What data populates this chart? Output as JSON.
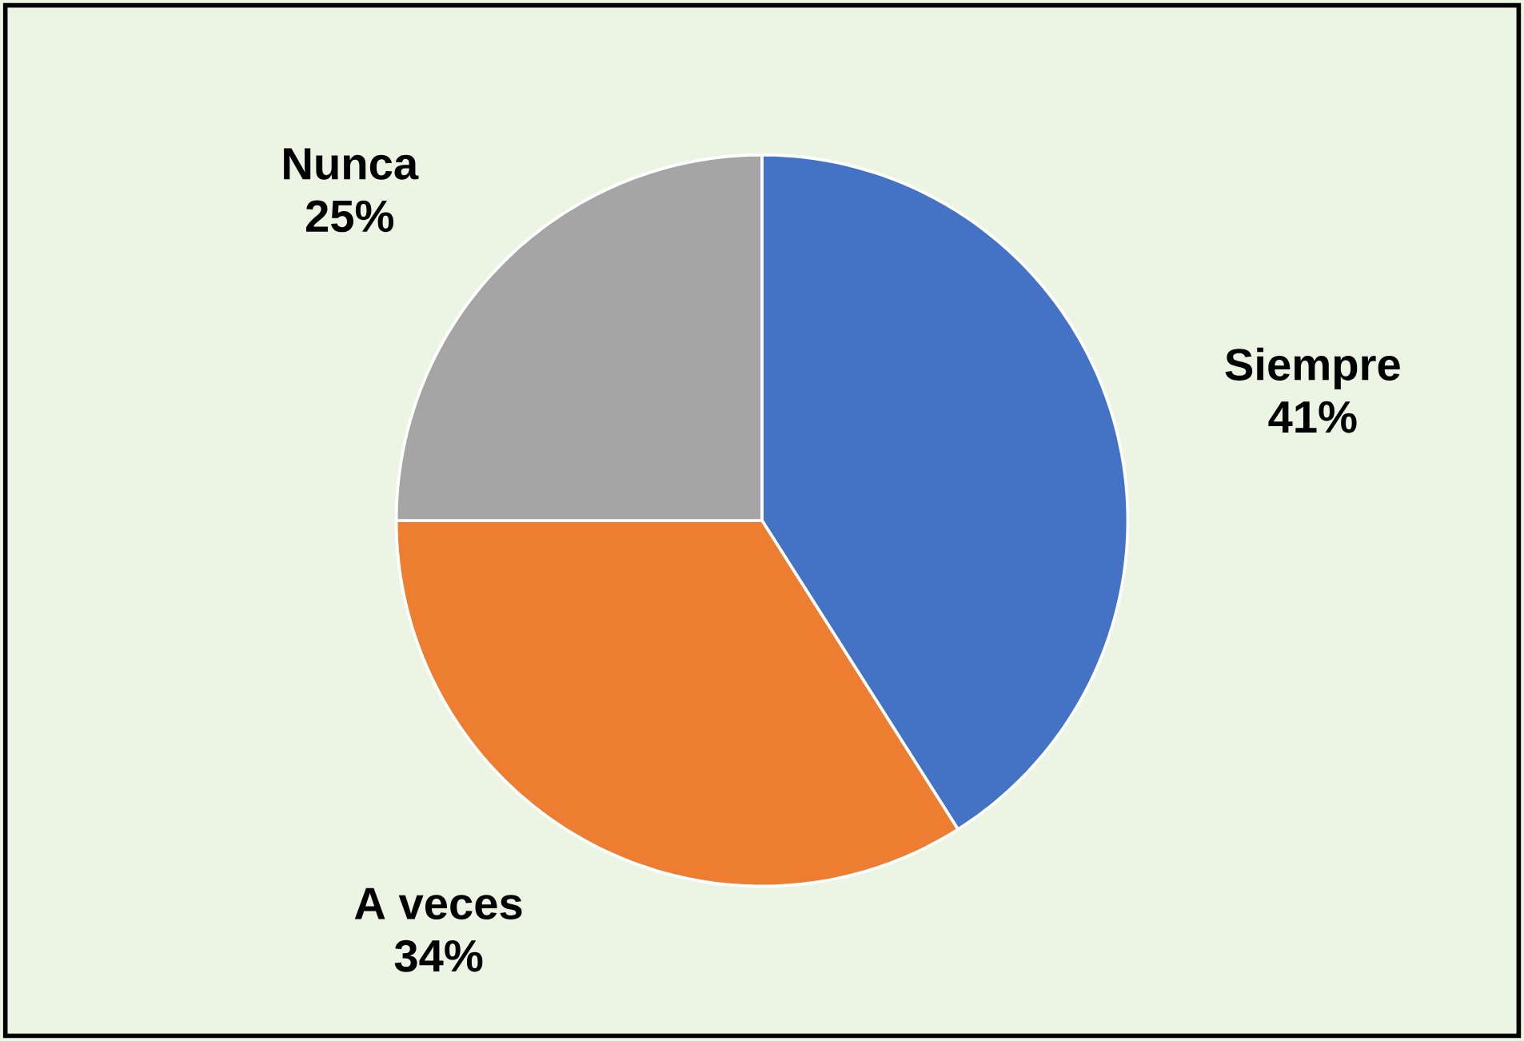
{
  "chart_data": {
    "type": "pie",
    "categories": [
      "Siempre",
      "A veces",
      "Nunca"
    ],
    "values": [
      41,
      34,
      25
    ],
    "colors": [
      "#4472c4",
      "#ed7d31",
      "#a5a5a5"
    ],
    "value_labels": [
      "41%",
      "34%",
      "25%"
    ]
  }
}
